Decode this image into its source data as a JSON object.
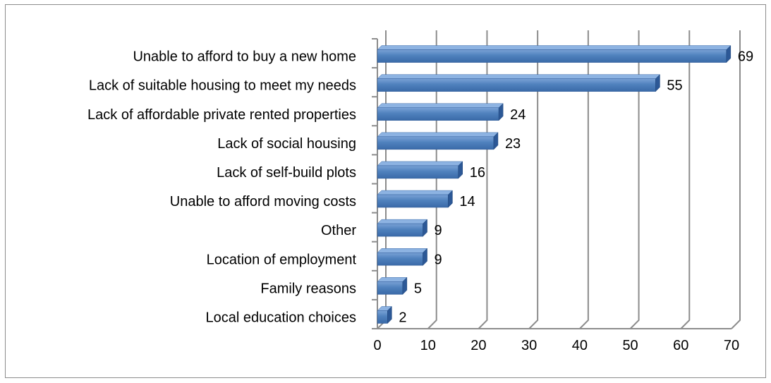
{
  "chart_data": {
    "type": "bar",
    "orientation": "horizontal",
    "style": "3d-clustered-bar",
    "categories": [
      "Unable to afford to buy a new home",
      "Lack of suitable housing to meet my needs",
      "Lack of affordable private rented properties",
      "Lack of social housing",
      "Lack of self-build plots",
      "Unable to afford moving costs",
      "Other",
      "Location of employment",
      "Family reasons",
      "Local education choices"
    ],
    "values": [
      69,
      55,
      24,
      23,
      16,
      14,
      9,
      9,
      5,
      2
    ],
    "xlim": [
      0,
      70
    ],
    "xticks": [
      "0",
      "10",
      "20",
      "30",
      "40",
      "50",
      "60",
      "70"
    ],
    "grid": true,
    "legend": "none",
    "colors": {
      "bar_front": "#4f81bd",
      "bar_top": "#8db3e2",
      "bar_side": "#2c5896",
      "grid": "#8c8c8c",
      "frame": "#8c8c8c"
    }
  }
}
